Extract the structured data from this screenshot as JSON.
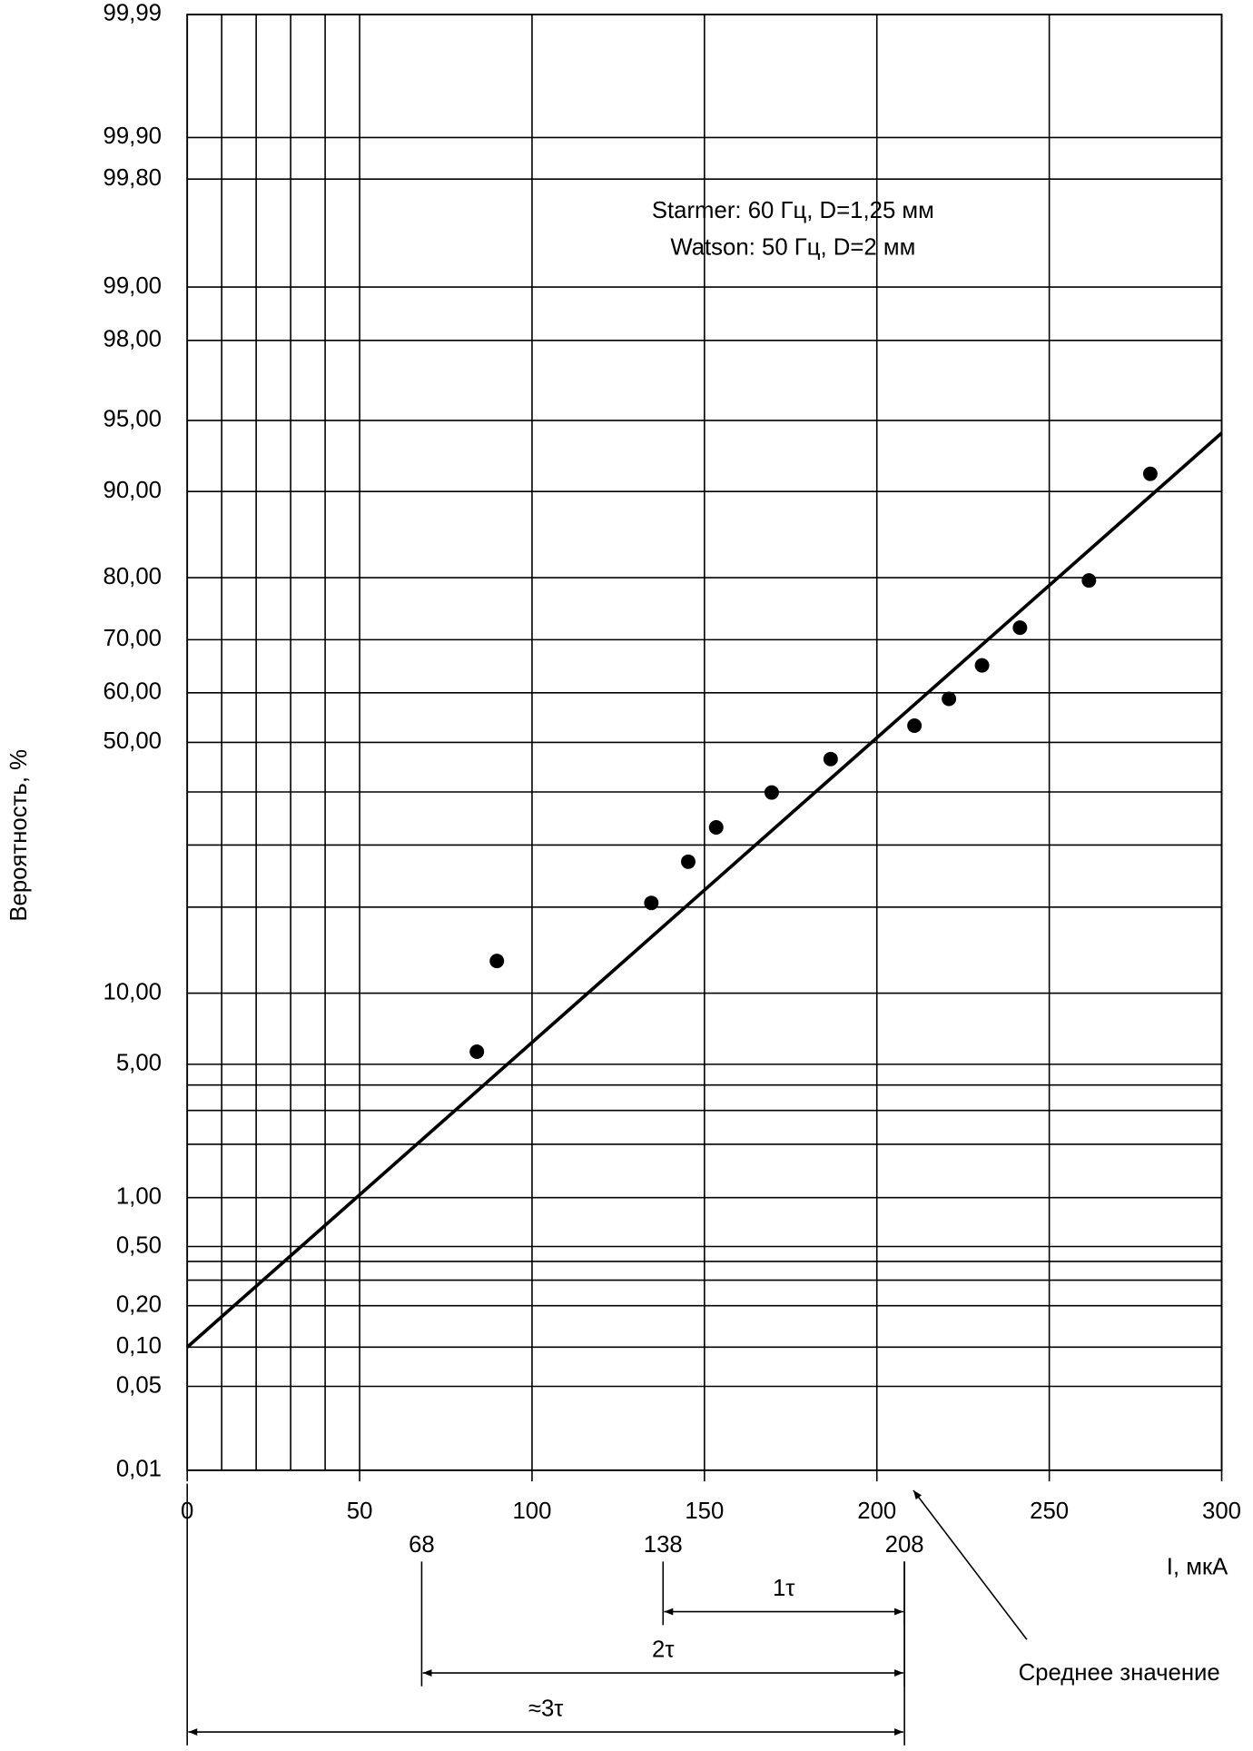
{
  "chart_data": {
    "type": "scatter",
    "y_label": "Вероятность, %",
    "x_label": "I, мкА",
    "annotations": [
      "Starmer: 60 Гц, D=1,25 мм",
      "Watson: 50 Гц, D=2 мм"
    ],
    "yscale": "probability",
    "xlim": [
      0,
      300
    ],
    "xticks": [
      0,
      50,
      100,
      150,
      200,
      250,
      300
    ],
    "xminor": [
      10,
      20,
      30,
      40
    ],
    "ylim": [
      0.01,
      99.99
    ],
    "yticks": [
      {
        "value": 0.01,
        "label": "0,01"
      },
      {
        "value": 0.05,
        "label": "0,05"
      },
      {
        "value": 0.1,
        "label": "0,10"
      },
      {
        "value": 0.2,
        "label": "0,20"
      },
      {
        "value": 0.5,
        "label": "0,50"
      },
      {
        "value": 1,
        "label": "1,00"
      },
      {
        "value": 5,
        "label": "5,00"
      },
      {
        "value": 10,
        "label": "10,00"
      },
      {
        "value": 50,
        "label": "50,00"
      },
      {
        "value": 60,
        "label": "60,00"
      },
      {
        "value": 70,
        "label": "70,00"
      },
      {
        "value": 80,
        "label": "80,00"
      },
      {
        "value": 90,
        "label": "90,00"
      },
      {
        "value": 95,
        "label": "95,00"
      },
      {
        "value": 98,
        "label": "98,00"
      },
      {
        "value": 99,
        "label": "99,00"
      },
      {
        "value": 99.8,
        "label": "99,80"
      },
      {
        "value": 99.9,
        "label": "99,90"
      },
      {
        "value": 99.99,
        "label": "99,99"
      }
    ],
    "yminor": [
      0.3,
      0.4,
      2,
      3,
      4,
      20,
      30,
      40
    ],
    "grid": true,
    "color": "#000000",
    "x": [
      84,
      89.8,
      134.6,
      145.3,
      153.4,
      169.5,
      186.6,
      210.9,
      220.9,
      230.5,
      241.5,
      261.5,
      279.3
    ],
    "values": [
      5.7,
      13.2,
      20.6,
      27.1,
      33.2,
      39.9,
      46.6,
      53.4,
      58.8,
      65.3,
      72.1,
      79.6,
      91.5
    ],
    "fit_line": {
      "x": [
        0,
        300
      ],
      "y": [
        0.1,
        94.3
      ]
    },
    "markers": [
      68,
      138,
      208
    ],
    "dimensions": [
      {
        "from": 138,
        "to": 208,
        "label": "1τ"
      },
      {
        "from": 68,
        "to": 208,
        "label": "2τ"
      },
      {
        "from": 0,
        "to": 208,
        "label": "≈3τ"
      }
    ],
    "mean_annotation": {
      "text": "Среднее значение",
      "x": 208
    }
  }
}
